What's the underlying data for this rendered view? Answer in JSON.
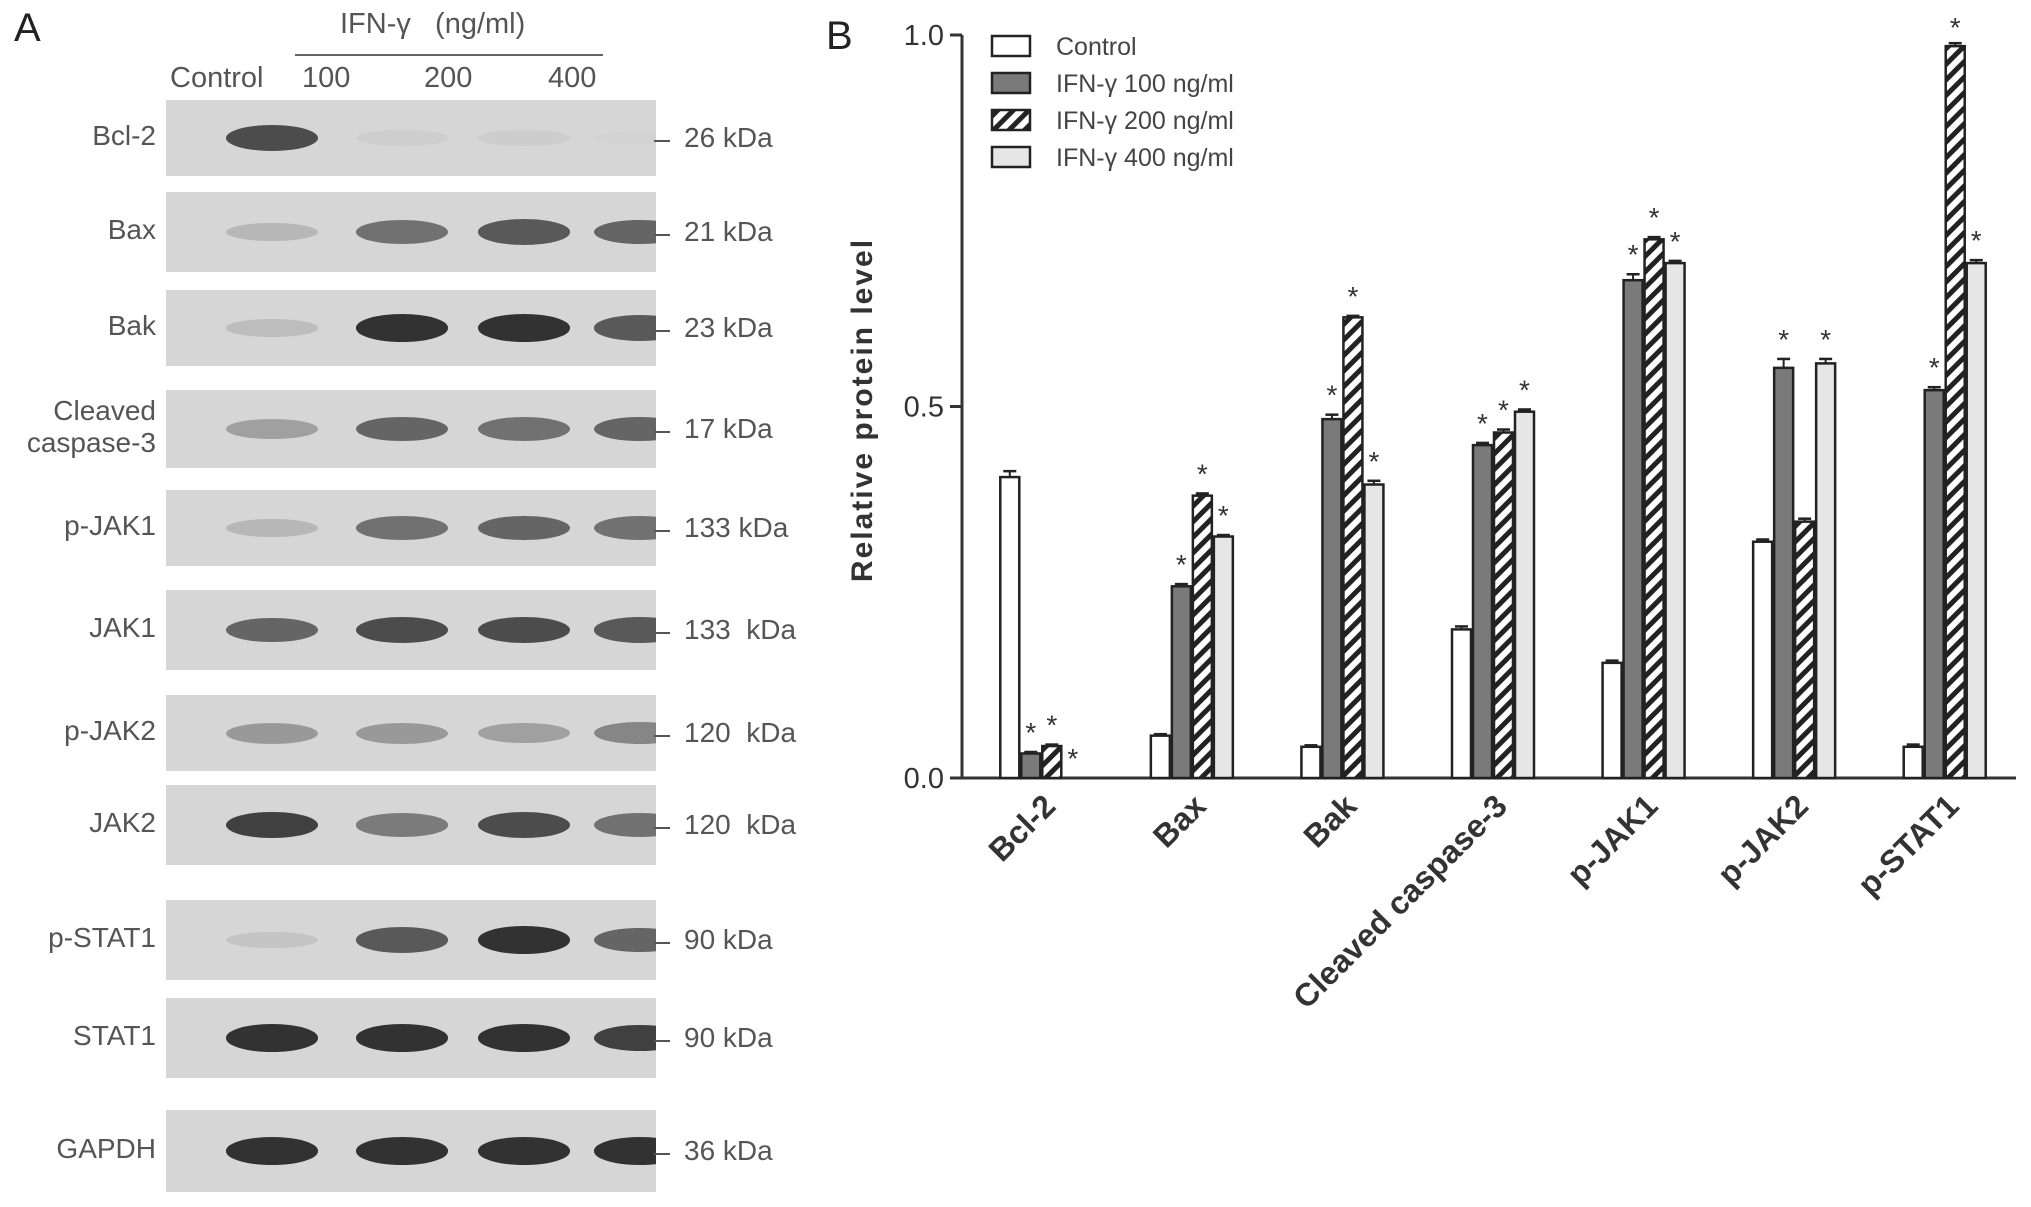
{
  "panel_a": {
    "letter": "A",
    "header": {
      "treatment": "IFN-γ   (ng/ml)",
      "control": "Control",
      "doses": [
        "100",
        "200",
        "400"
      ]
    },
    "rows": [
      {
        "label": "Bcl-2",
        "kda": "26 kDa",
        "bands": [
          0.85,
          0.08,
          0.1,
          0.03
        ]
      },
      {
        "label": "Bax",
        "kda": "21 kDa",
        "bands": [
          0.3,
          0.7,
          0.8,
          0.75
        ]
      },
      {
        "label": "Bak",
        "kda": "23 kDa",
        "bands": [
          0.25,
          0.95,
          0.95,
          0.8
        ]
      },
      {
        "label": "Cleaved\ncaspase-3",
        "kda": "17 kDa",
        "bands": [
          0.45,
          0.75,
          0.7,
          0.75
        ]
      },
      {
        "label": "p-JAK1",
        "kda": "133 kDa",
        "bands": [
          0.3,
          0.7,
          0.75,
          0.7
        ]
      },
      {
        "label": "JAK1",
        "kda": "133  kDa",
        "bands": [
          0.75,
          0.85,
          0.85,
          0.8
        ]
      },
      {
        "label": "p-JAK2",
        "kda": "120  kDa",
        "bands": [
          0.5,
          0.5,
          0.45,
          0.6
        ]
      },
      {
        "label": "JAK2",
        "kda": "120  kDa",
        "bands": [
          0.9,
          0.65,
          0.85,
          0.7
        ]
      },
      {
        "label": "p-STAT1",
        "kda": "90 kDa",
        "bands": [
          0.2,
          0.8,
          0.95,
          0.75
        ]
      },
      {
        "label": "STAT1",
        "kda": "90 kDa",
        "bands": [
          0.95,
          0.95,
          0.95,
          0.9
        ]
      },
      {
        "label": "GAPDH",
        "kda": "36 kDa",
        "bands": [
          0.95,
          0.95,
          0.95,
          0.95
        ]
      }
    ]
  },
  "chart_data": {
    "type": "bar",
    "panel_letter": "B",
    "ylabel": "Relative protein level",
    "ylim": [
      0,
      1.0
    ],
    "yticks": [
      "0.0",
      "0.5",
      "1.0"
    ],
    "categories": [
      "Bcl-2",
      "Bax",
      "Bak",
      "Cleaved caspase-3",
      "p-JAK1",
      "p-JAK2",
      "p-STAT1"
    ],
    "series": [
      {
        "name": "Control",
        "pattern": "white",
        "values": [
          0.405,
          0.057,
          0.042,
          0.2,
          0.155,
          0.318,
          0.042
        ]
      },
      {
        "name": "IFN-γ 100 ng/ml",
        "pattern": "dark-gray",
        "values": [
          0.033,
          0.258,
          0.483,
          0.448,
          0.67,
          0.552,
          0.522
        ]
      },
      {
        "name": "IFN-γ 200 ng/ml",
        "pattern": "hatched",
        "values": [
          0.043,
          0.38,
          0.62,
          0.465,
          0.725,
          0.345,
          0.985
        ]
      },
      {
        "name": "IFN-γ 400 ng/ml",
        "pattern": "light-gray",
        "values": [
          0.0,
          0.325,
          0.395,
          0.493,
          0.693,
          0.558,
          0.693
        ]
      }
    ],
    "errors": [
      [
        0.008,
        0.002,
        0.002,
        0.004,
        0.003,
        0.003,
        0.003
      ],
      [
        0.002,
        0.003,
        0.006,
        0.003,
        0.008,
        0.012,
        0.004
      ],
      [
        0.002,
        0.003,
        0.002,
        0.004,
        0.003,
        0.004,
        0.004
      ],
      [
        0.0,
        0.002,
        0.005,
        0.003,
        0.003,
        0.006,
        0.004
      ]
    ],
    "significance": [
      [
        false,
        false,
        false,
        false,
        false,
        false,
        false
      ],
      [
        true,
        true,
        true,
        true,
        true,
        true,
        true
      ],
      [
        true,
        true,
        true,
        true,
        true,
        false,
        true
      ],
      [
        true,
        true,
        true,
        true,
        true,
        true,
        true
      ]
    ],
    "significance_marker": "*",
    "legend_position": "top-left",
    "colors": {
      "control": "#ffffff",
      "ifn100": "#7a7a7a",
      "ifn200_hatch": "#222222",
      "ifn400": "#e6e6e6",
      "axis": "#333333"
    }
  }
}
